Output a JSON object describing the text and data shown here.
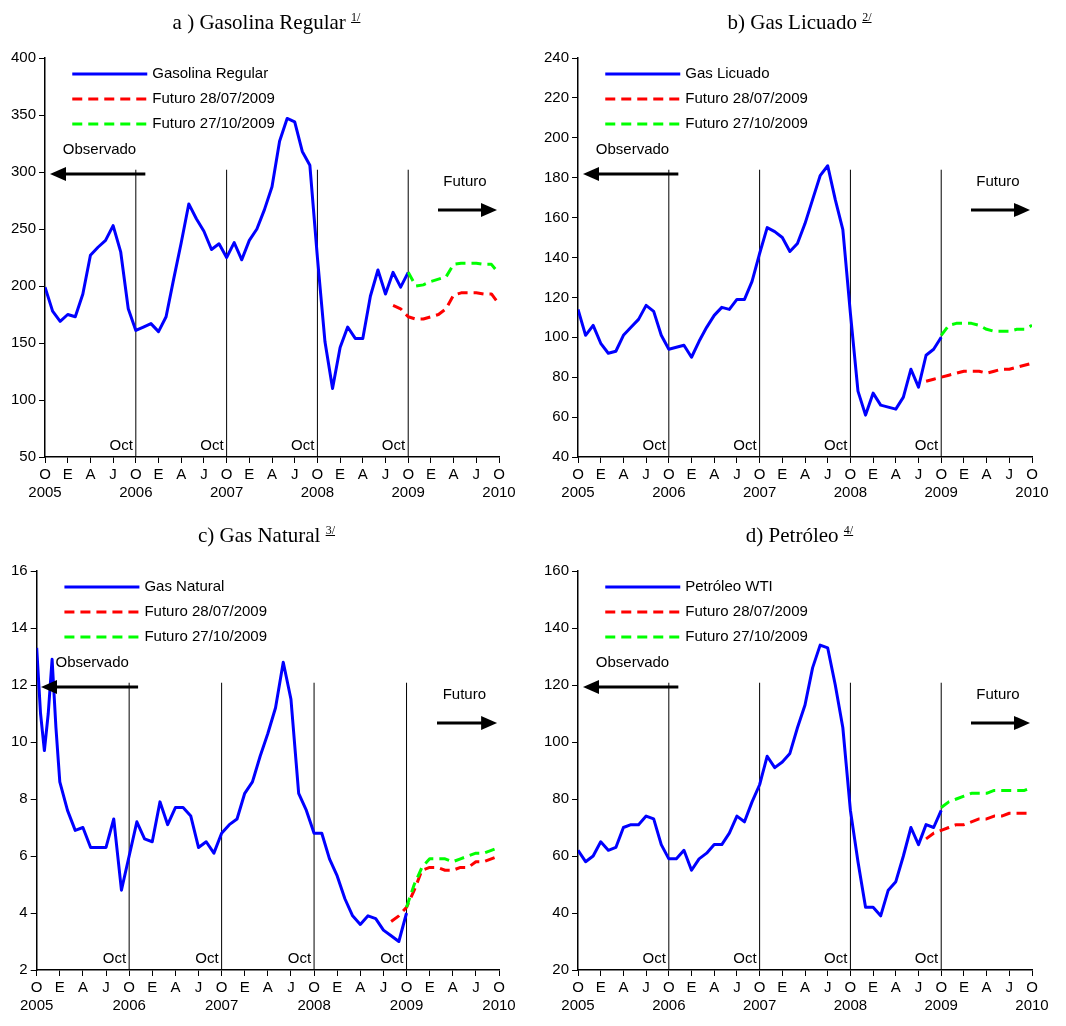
{
  "chart_data": [
    {
      "type": "line",
      "title": "a ) Gasolina Regular $^{1/}$",
      "legend": "top left",
      "ylim": [
        50,
        400
      ],
      "yticks": [
        50,
        100,
        150,
        200,
        250,
        300,
        350,
        400
      ],
      "xlim": [
        "2005-10",
        "2010-10"
      ],
      "xticks": [
        {
          "value": "2005-10",
          "label": "O\n2005"
        },
        {
          "value": "2006-01",
          "label": "E"
        },
        {
          "value": "2006-04",
          "label": "A"
        },
        {
          "value": "2006-07",
          "label": "J"
        },
        {
          "value": "2006-10",
          "label": "O\n2006"
        },
        {
          "value": "2007-01",
          "label": "E"
        },
        {
          "value": "2007-04",
          "label": "A"
        },
        {
          "value": "2007-07",
          "label": "J"
        },
        {
          "value": "2007-10",
          "label": "O\n2007"
        },
        {
          "value": "2008-01",
          "label": "E"
        },
        {
          "value": "2008-04",
          "label": "A"
        },
        {
          "value": "2008-07",
          "label": "J"
        },
        {
          "value": "2008-10",
          "label": "O\n2008"
        },
        {
          "value": "2009-01",
          "label": "E"
        },
        {
          "value": "2009-04",
          "label": "A"
        },
        {
          "value": "2009-07",
          "label": "J"
        },
        {
          "value": "2009-10",
          "label": "O\n2009"
        },
        {
          "value": "2010-01",
          "label": "E"
        },
        {
          "value": "2010-04",
          "label": "A"
        },
        {
          "value": "2010-07",
          "label": "J"
        },
        {
          "value": "2010-10",
          "label": "O\n2010"
        }
      ],
      "ref_lines": [
        {
          "axis": "x",
          "value": "2006-10",
          "label": "Oct",
          "color": "#000000"
        },
        {
          "axis": "x",
          "value": "2007-10",
          "label": "Oct",
          "color": "#000000"
        },
        {
          "axis": "x",
          "value": "2008-10",
          "label": "Oct",
          "color": "#000000"
        },
        {
          "axis": "x",
          "value": "2009-10",
          "label": "Oct",
          "color": "#000000"
        }
      ],
      "annotations": [
        "Observado",
        "Futuro"
      ],
      "series": [
        {
          "name": "Gasolina Regular",
          "color": "#0000ff",
          "line_style": "solid",
          "x": [
            "2005-10",
            "2005-11",
            "2005-12",
            "2006-01",
            "2006-02",
            "2006-03",
            "2006-04",
            "2006-05",
            "2006-06",
            "2006-07",
            "2006-08",
            "2006-09",
            "2006-10",
            "2006-11",
            "2006-12",
            "2007-01",
            "2007-02",
            "2007-03",
            "2007-04",
            "2007-05",
            "2007-06",
            "2007-07",
            "2007-08",
            "2007-09",
            "2007-10",
            "2007-11",
            "2007-12",
            "2008-01",
            "2008-02",
            "2008-03",
            "2008-04",
            "2008-05",
            "2008-06",
            "2008-07",
            "2008-08",
            "2008-09",
            "2008-10",
            "2008-11",
            "2008-12",
            "2009-01",
            "2009-02",
            "2009-03",
            "2009-04",
            "2009-05",
            "2009-06",
            "2009-07",
            "2009-08",
            "2009-09",
            "2009-10"
          ],
          "values": [
            199,
            178,
            169,
            175,
            173,
            193,
            227,
            234,
            240,
            253,
            230,
            180,
            161,
            164,
            167,
            160,
            173,
            206,
            238,
            272,
            259,
            248,
            232,
            237,
            225,
            238,
            223,
            240,
            250,
            267,
            287,
            327,
            347,
            344,
            318,
            306,
            225,
            151,
            110,
            146,
            164,
            154,
            154,
            191,
            214,
            193,
            212,
            199,
            212
          ]
        },
        {
          "name": "Futuro 28/07/2009",
          "color": "#ff0000",
          "line_style": "dashed",
          "x": [
            "2009-08",
            "2009-09",
            "2009-10",
            "2009-11",
            "2009-12",
            "2010-01",
            "2010-02",
            "2010-03",
            "2010-04",
            "2010-05",
            "2010-06",
            "2010-07",
            "2010-08",
            "2010-09",
            "2010-10"
          ],
          "values": [
            183,
            180,
            173,
            171,
            171,
            173,
            175,
            180,
            192,
            194,
            194,
            194,
            193,
            193,
            184
          ]
        },
        {
          "name": "Futuro 27/10/2009",
          "color": "#00ff00",
          "line_style": "dashed",
          "x": [
            "2009-10",
            "2009-11",
            "2009-12",
            "2010-01",
            "2010-02",
            "2010-03",
            "2010-04",
            "2010-05",
            "2010-06",
            "2010-07",
            "2010-08",
            "2010-09",
            "2010-10"
          ],
          "values": [
            212,
            200,
            201,
            204,
            206,
            208,
            219,
            220,
            220,
            220,
            219,
            219,
            211
          ]
        }
      ]
    },
    {
      "type": "line",
      "title": "b) Gas Licuado $^{2/}$",
      "legend": "top left",
      "ylim": [
        40,
        240
      ],
      "yticks": [
        40,
        60,
        80,
        100,
        120,
        140,
        160,
        180,
        200,
        220,
        240
      ],
      "xlim": [
        "2005-10",
        "2010-10"
      ],
      "xticks": [
        {
          "value": "2005-10",
          "label": "O\n2005"
        },
        {
          "value": "2006-01",
          "label": "E"
        },
        {
          "value": "2006-04",
          "label": "A"
        },
        {
          "value": "2006-07",
          "label": "J"
        },
        {
          "value": "2006-10",
          "label": "O\n2006"
        },
        {
          "value": "2007-01",
          "label": "E"
        },
        {
          "value": "2007-04",
          "label": "A"
        },
        {
          "value": "2007-07",
          "label": "J"
        },
        {
          "value": "2007-10",
          "label": "O\n2007"
        },
        {
          "value": "2008-01",
          "label": "E"
        },
        {
          "value": "2008-04",
          "label": "A"
        },
        {
          "value": "2008-07",
          "label": "J"
        },
        {
          "value": "2008-10",
          "label": "O\n2008"
        },
        {
          "value": "2009-01",
          "label": "E"
        },
        {
          "value": "2009-04",
          "label": "A"
        },
        {
          "value": "2009-07",
          "label": "J"
        },
        {
          "value": "2009-10",
          "label": "O\n2009"
        },
        {
          "value": "2010-01",
          "label": "E"
        },
        {
          "value": "2010-04",
          "label": "A"
        },
        {
          "value": "2010-07",
          "label": "J"
        },
        {
          "value": "2010-10",
          "label": "O\n2010"
        }
      ],
      "ref_lines": [
        {
          "axis": "x",
          "value": "2006-10",
          "label": "Oct",
          "color": "#000000"
        },
        {
          "axis": "x",
          "value": "2007-10",
          "label": "Oct",
          "color": "#000000"
        },
        {
          "axis": "x",
          "value": "2008-10",
          "label": "Oct",
          "color": "#000000"
        },
        {
          "axis": "x",
          "value": "2009-10",
          "label": "Oct",
          "color": "#000000"
        }
      ],
      "annotations": [
        "Observado",
        "Futuro"
      ],
      "series": [
        {
          "name": "Gas Licuado",
          "color": "#0000ff",
          "line_style": "solid",
          "x": [
            "2005-10",
            "2005-11",
            "2005-12",
            "2006-01",
            "2006-02",
            "2006-03",
            "2006-04",
            "2006-05",
            "2006-06",
            "2006-07",
            "2006-08",
            "2006-09",
            "2006-10",
            "2006-11",
            "2006-12",
            "2007-01",
            "2007-02",
            "2007-03",
            "2007-04",
            "2007-05",
            "2007-06",
            "2007-07",
            "2007-08",
            "2007-09",
            "2007-10",
            "2007-11",
            "2007-12",
            "2008-01",
            "2008-02",
            "2008-03",
            "2008-04",
            "2008-05",
            "2008-06",
            "2008-07",
            "2008-08",
            "2008-09",
            "2008-10",
            "2008-11",
            "2008-12",
            "2009-01",
            "2009-02",
            "2009-03",
            "2009-04",
            "2009-05",
            "2009-06",
            "2009-07",
            "2009-08",
            "2009-09",
            "2009-10"
          ],
          "values": [
            114,
            101,
            106,
            97,
            92,
            93,
            101,
            105,
            109,
            116,
            113,
            101,
            94,
            95,
            96,
            90,
            98,
            105,
            111,
            115,
            114,
            119,
            119,
            128,
            142,
            155,
            153,
            150,
            143,
            147,
            157,
            169,
            181,
            186,
            169,
            154,
            112,
            73,
            61,
            72,
            66,
            65,
            64,
            70,
            84,
            75,
            91,
            94,
            100
          ]
        },
        {
          "name": "Futuro 28/07/2009",
          "color": "#ff0000",
          "line_style": "dashed",
          "x": [
            "2009-08",
            "2009-09",
            "2009-10",
            "2009-11",
            "2009-12",
            "2010-01",
            "2010-02",
            "2010-03",
            "2010-04",
            "2010-05",
            "2010-06",
            "2010-07",
            "2010-08",
            "2010-09",
            "2010-10"
          ],
          "values": [
            78,
            79,
            80,
            81,
            82,
            83,
            83,
            83,
            82,
            83,
            84,
            84,
            85,
            86,
            87
          ]
        },
        {
          "name": "Futuro 27/10/2009",
          "color": "#00ff00",
          "line_style": "dashed",
          "x": [
            "2009-10",
            "2009-11",
            "2009-12",
            "2010-01",
            "2010-02",
            "2010-03",
            "2010-04",
            "2010-05",
            "2010-06",
            "2010-07",
            "2010-08",
            "2010-09",
            "2010-10"
          ],
          "values": [
            101,
            106,
            107,
            107,
            107,
            106,
            104,
            103,
            103,
            103,
            104,
            104,
            106
          ]
        }
      ]
    },
    {
      "type": "line",
      "title": "c) Gas Natural $^{3/}$",
      "legend": "top left",
      "ylim": [
        2,
        16
      ],
      "yticks": [
        2,
        4,
        6,
        8,
        10,
        12,
        14,
        16
      ],
      "xlim": [
        "2005-10",
        "2010-10"
      ],
      "xticks": [
        {
          "value": "2005-10",
          "label": "O\n2005"
        },
        {
          "value": "2006-01",
          "label": "E"
        },
        {
          "value": "2006-04",
          "label": "A"
        },
        {
          "value": "2006-07",
          "label": "J"
        },
        {
          "value": "2006-10",
          "label": "O\n2006"
        },
        {
          "value": "2007-01",
          "label": "E"
        },
        {
          "value": "2007-04",
          "label": "A"
        },
        {
          "value": "2007-07",
          "label": "J"
        },
        {
          "value": "2007-10",
          "label": "O\n2007"
        },
        {
          "value": "2008-01",
          "label": "E"
        },
        {
          "value": "2008-04",
          "label": "A"
        },
        {
          "value": "2008-07",
          "label": "J"
        },
        {
          "value": "2008-10",
          "label": "O\n2008"
        },
        {
          "value": "2009-01",
          "label": "E"
        },
        {
          "value": "2009-04",
          "label": "A"
        },
        {
          "value": "2009-07",
          "label": "J"
        },
        {
          "value": "2009-10",
          "label": "O\n2009"
        },
        {
          "value": "2010-01",
          "label": "E"
        },
        {
          "value": "2010-04",
          "label": "A"
        },
        {
          "value": "2010-07",
          "label": "J"
        },
        {
          "value": "2010-10",
          "label": "O\n2010"
        }
      ],
      "ref_lines": [
        {
          "axis": "x",
          "value": "2006-10",
          "label": "Oct",
          "color": "#000000"
        },
        {
          "axis": "x",
          "value": "2007-10",
          "label": "Oct",
          "color": "#000000"
        },
        {
          "axis": "x",
          "value": "2008-10",
          "label": "Oct",
          "color": "#000000"
        },
        {
          "axis": "x",
          "value": "2009-10",
          "label": "Oct",
          "color": "#000000"
        }
      ],
      "annotations": [
        "Observado",
        "Futuro"
      ],
      "series": [
        {
          "name": "Gas Natural",
          "color": "#0000ff",
          "line_style": "solid",
          "x": [
            "2005-10",
            "2005-10-16",
            "2005-11",
            "2005-11-16",
            "2005-12",
            "2005-12-16",
            "2006-01",
            "2006-02",
            "2006-03",
            "2006-04",
            "2006-05",
            "2006-06",
            "2006-07",
            "2006-08",
            "2006-09",
            "2006-10",
            "2006-11",
            "2006-12",
            "2007-01",
            "2007-02",
            "2007-03",
            "2007-04",
            "2007-05",
            "2007-06",
            "2007-07",
            "2007-08",
            "2007-09",
            "2007-10",
            "2007-11",
            "2007-12",
            "2008-01",
            "2008-02",
            "2008-03",
            "2008-04",
            "2008-05",
            "2008-06",
            "2008-07",
            "2008-08",
            "2008-09",
            "2008-10",
            "2008-11",
            "2008-12",
            "2009-01",
            "2009-02",
            "2009-03",
            "2009-04",
            "2009-05",
            "2009-06",
            "2009-07",
            "2009-08",
            "2009-09",
            "2009-10"
          ],
          "values": [
            13.3,
            11.0,
            9.7,
            11.0,
            12.9,
            10.5,
            8.6,
            7.6,
            6.9,
            7.0,
            6.3,
            6.3,
            6.3,
            7.3,
            4.8,
            6.0,
            7.2,
            6.6,
            6.5,
            7.9,
            7.1,
            7.7,
            7.7,
            7.4,
            6.3,
            6.5,
            6.1,
            6.8,
            7.1,
            7.3,
            8.2,
            8.6,
            9.5,
            10.3,
            11.2,
            12.8,
            11.5,
            8.2,
            7.6,
            6.8,
            6.8,
            5.9,
            5.3,
            4.5,
            3.9,
            3.6,
            3.9,
            3.8,
            3.4,
            3.2,
            3.0,
            4.0
          ]
        },
        {
          "name": "Futuro 28/07/2009",
          "color": "#ff0000",
          "line_style": "dashed",
          "x": [
            "2009-08",
            "2009-09",
            "2009-10",
            "2009-11",
            "2009-12",
            "2010-01",
            "2010-02",
            "2010-03",
            "2010-04",
            "2010-05",
            "2010-06",
            "2010-07",
            "2010-08",
            "2010-09",
            "2010-10"
          ],
          "values": [
            3.7,
            3.9,
            4.2,
            4.8,
            5.5,
            5.6,
            5.6,
            5.5,
            5.5,
            5.6,
            5.6,
            5.8,
            5.8,
            5.9,
            6.0
          ]
        },
        {
          "name": "Futuro 27/10/2009",
          "color": "#00ff00",
          "line_style": "dashed",
          "x": [
            "2009-10",
            "2009-11",
            "2009-12",
            "2010-01",
            "2010-02",
            "2010-03",
            "2010-04",
            "2010-05",
            "2010-06",
            "2010-07",
            "2010-08",
            "2010-09",
            "2010-10"
          ],
          "values": [
            4.2,
            5.0,
            5.6,
            5.9,
            5.9,
            5.9,
            5.8,
            5.9,
            6.0,
            6.1,
            6.1,
            6.2,
            6.3
          ]
        }
      ]
    },
    {
      "type": "line",
      "title": "d) Petróleo $^{4/}$",
      "legend": "top left",
      "ylim": [
        20,
        160
      ],
      "yticks": [
        20,
        40,
        60,
        80,
        100,
        120,
        140,
        160
      ],
      "xlim": [
        "2005-10",
        "2010-10"
      ],
      "xticks": [
        {
          "value": "2005-10",
          "label": "O\n2005"
        },
        {
          "value": "2006-01",
          "label": "E"
        },
        {
          "value": "2006-04",
          "label": "A"
        },
        {
          "value": "2006-07",
          "label": "J"
        },
        {
          "value": "2006-10",
          "label": "O\n2006"
        },
        {
          "value": "2007-01",
          "label": "E"
        },
        {
          "value": "2007-04",
          "label": "A"
        },
        {
          "value": "2007-07",
          "label": "J"
        },
        {
          "value": "2007-10",
          "label": "O\n2007"
        },
        {
          "value": "2008-01",
          "label": "E"
        },
        {
          "value": "2008-04",
          "label": "A"
        },
        {
          "value": "2008-07",
          "label": "J"
        },
        {
          "value": "2008-10",
          "label": "O\n2008"
        },
        {
          "value": "2009-01",
          "label": "E"
        },
        {
          "value": "2009-04",
          "label": "A"
        },
        {
          "value": "2009-07",
          "label": "J"
        },
        {
          "value": "2009-10",
          "label": "O\n2009"
        },
        {
          "value": "2010-01",
          "label": "E"
        },
        {
          "value": "2010-04",
          "label": "A"
        },
        {
          "value": "2010-07",
          "label": "J"
        },
        {
          "value": "2010-10",
          "label": "O\n2010"
        }
      ],
      "ref_lines": [
        {
          "axis": "x",
          "value": "2006-10",
          "label": "Oct",
          "color": "#000000"
        },
        {
          "axis": "x",
          "value": "2007-10",
          "label": "Oct",
          "color": "#000000"
        },
        {
          "axis": "x",
          "value": "2008-10",
          "label": "Oct",
          "color": "#000000"
        },
        {
          "axis": "x",
          "value": "2009-10",
          "label": "Oct",
          "color": "#000000"
        }
      ],
      "annotations": [
        "Observado",
        "Futuro"
      ],
      "series": [
        {
          "name": "Petróleo WTI",
          "color": "#0000ff",
          "line_style": "solid",
          "x": [
            "2005-10",
            "2005-11",
            "2005-12",
            "2006-01",
            "2006-02",
            "2006-03",
            "2006-04",
            "2006-05",
            "2006-06",
            "2006-07",
            "2006-08",
            "2006-09",
            "2006-10",
            "2006-11",
            "2006-12",
            "2007-01",
            "2007-02",
            "2007-03",
            "2007-04",
            "2007-05",
            "2007-06",
            "2007-07",
            "2007-08",
            "2007-09",
            "2007-10",
            "2007-11",
            "2007-12",
            "2008-01",
            "2008-02",
            "2008-03",
            "2008-04",
            "2008-05",
            "2008-06",
            "2008-07",
            "2008-08",
            "2008-09",
            "2008-10",
            "2008-11",
            "2008-12",
            "2009-01",
            "2009-02",
            "2009-03",
            "2009-04",
            "2009-05",
            "2009-06",
            "2009-07",
            "2009-08",
            "2009-09",
            "2009-10"
          ],
          "values": [
            62,
            58,
            60,
            65,
            62,
            63,
            70,
            71,
            71,
            74,
            73,
            64,
            59,
            59,
            62,
            55,
            59,
            61,
            64,
            64,
            68,
            74,
            72,
            79,
            85,
            95,
            91,
            93,
            96,
            105,
            113,
            126,
            134,
            133,
            120,
            105,
            76,
            58,
            42,
            42,
            39,
            48,
            51,
            60,
            70,
            64,
            71,
            70,
            76
          ]
        },
        {
          "name": "Futuro 28/07/2009",
          "color": "#ff0000",
          "line_style": "dashed",
          "x": [
            "2009-08",
            "2009-09",
            "2009-10",
            "2009-11",
            "2009-12",
            "2010-01",
            "2010-02",
            "2010-03",
            "2010-04",
            "2010-05",
            "2010-06",
            "2010-07",
            "2010-08",
            "2010-09",
            "2010-10"
          ],
          "values": [
            66,
            68,
            69,
            70,
            71,
            71,
            72,
            73,
            73,
            74,
            74,
            75,
            75,
            75,
            75
          ]
        },
        {
          "name": "Futuro 27/10/2009",
          "color": "#00ff00",
          "line_style": "dashed",
          "x": [
            "2009-10",
            "2009-11",
            "2009-12",
            "2010-01",
            "2010-02",
            "2010-03",
            "2010-04",
            "2010-05",
            "2010-06",
            "2010-07",
            "2010-08",
            "2010-09",
            "2010-10"
          ],
          "values": [
            77,
            79,
            80,
            81,
            82,
            82,
            82,
            83,
            83,
            83,
            83,
            83,
            84
          ]
        }
      ]
    }
  ]
}
